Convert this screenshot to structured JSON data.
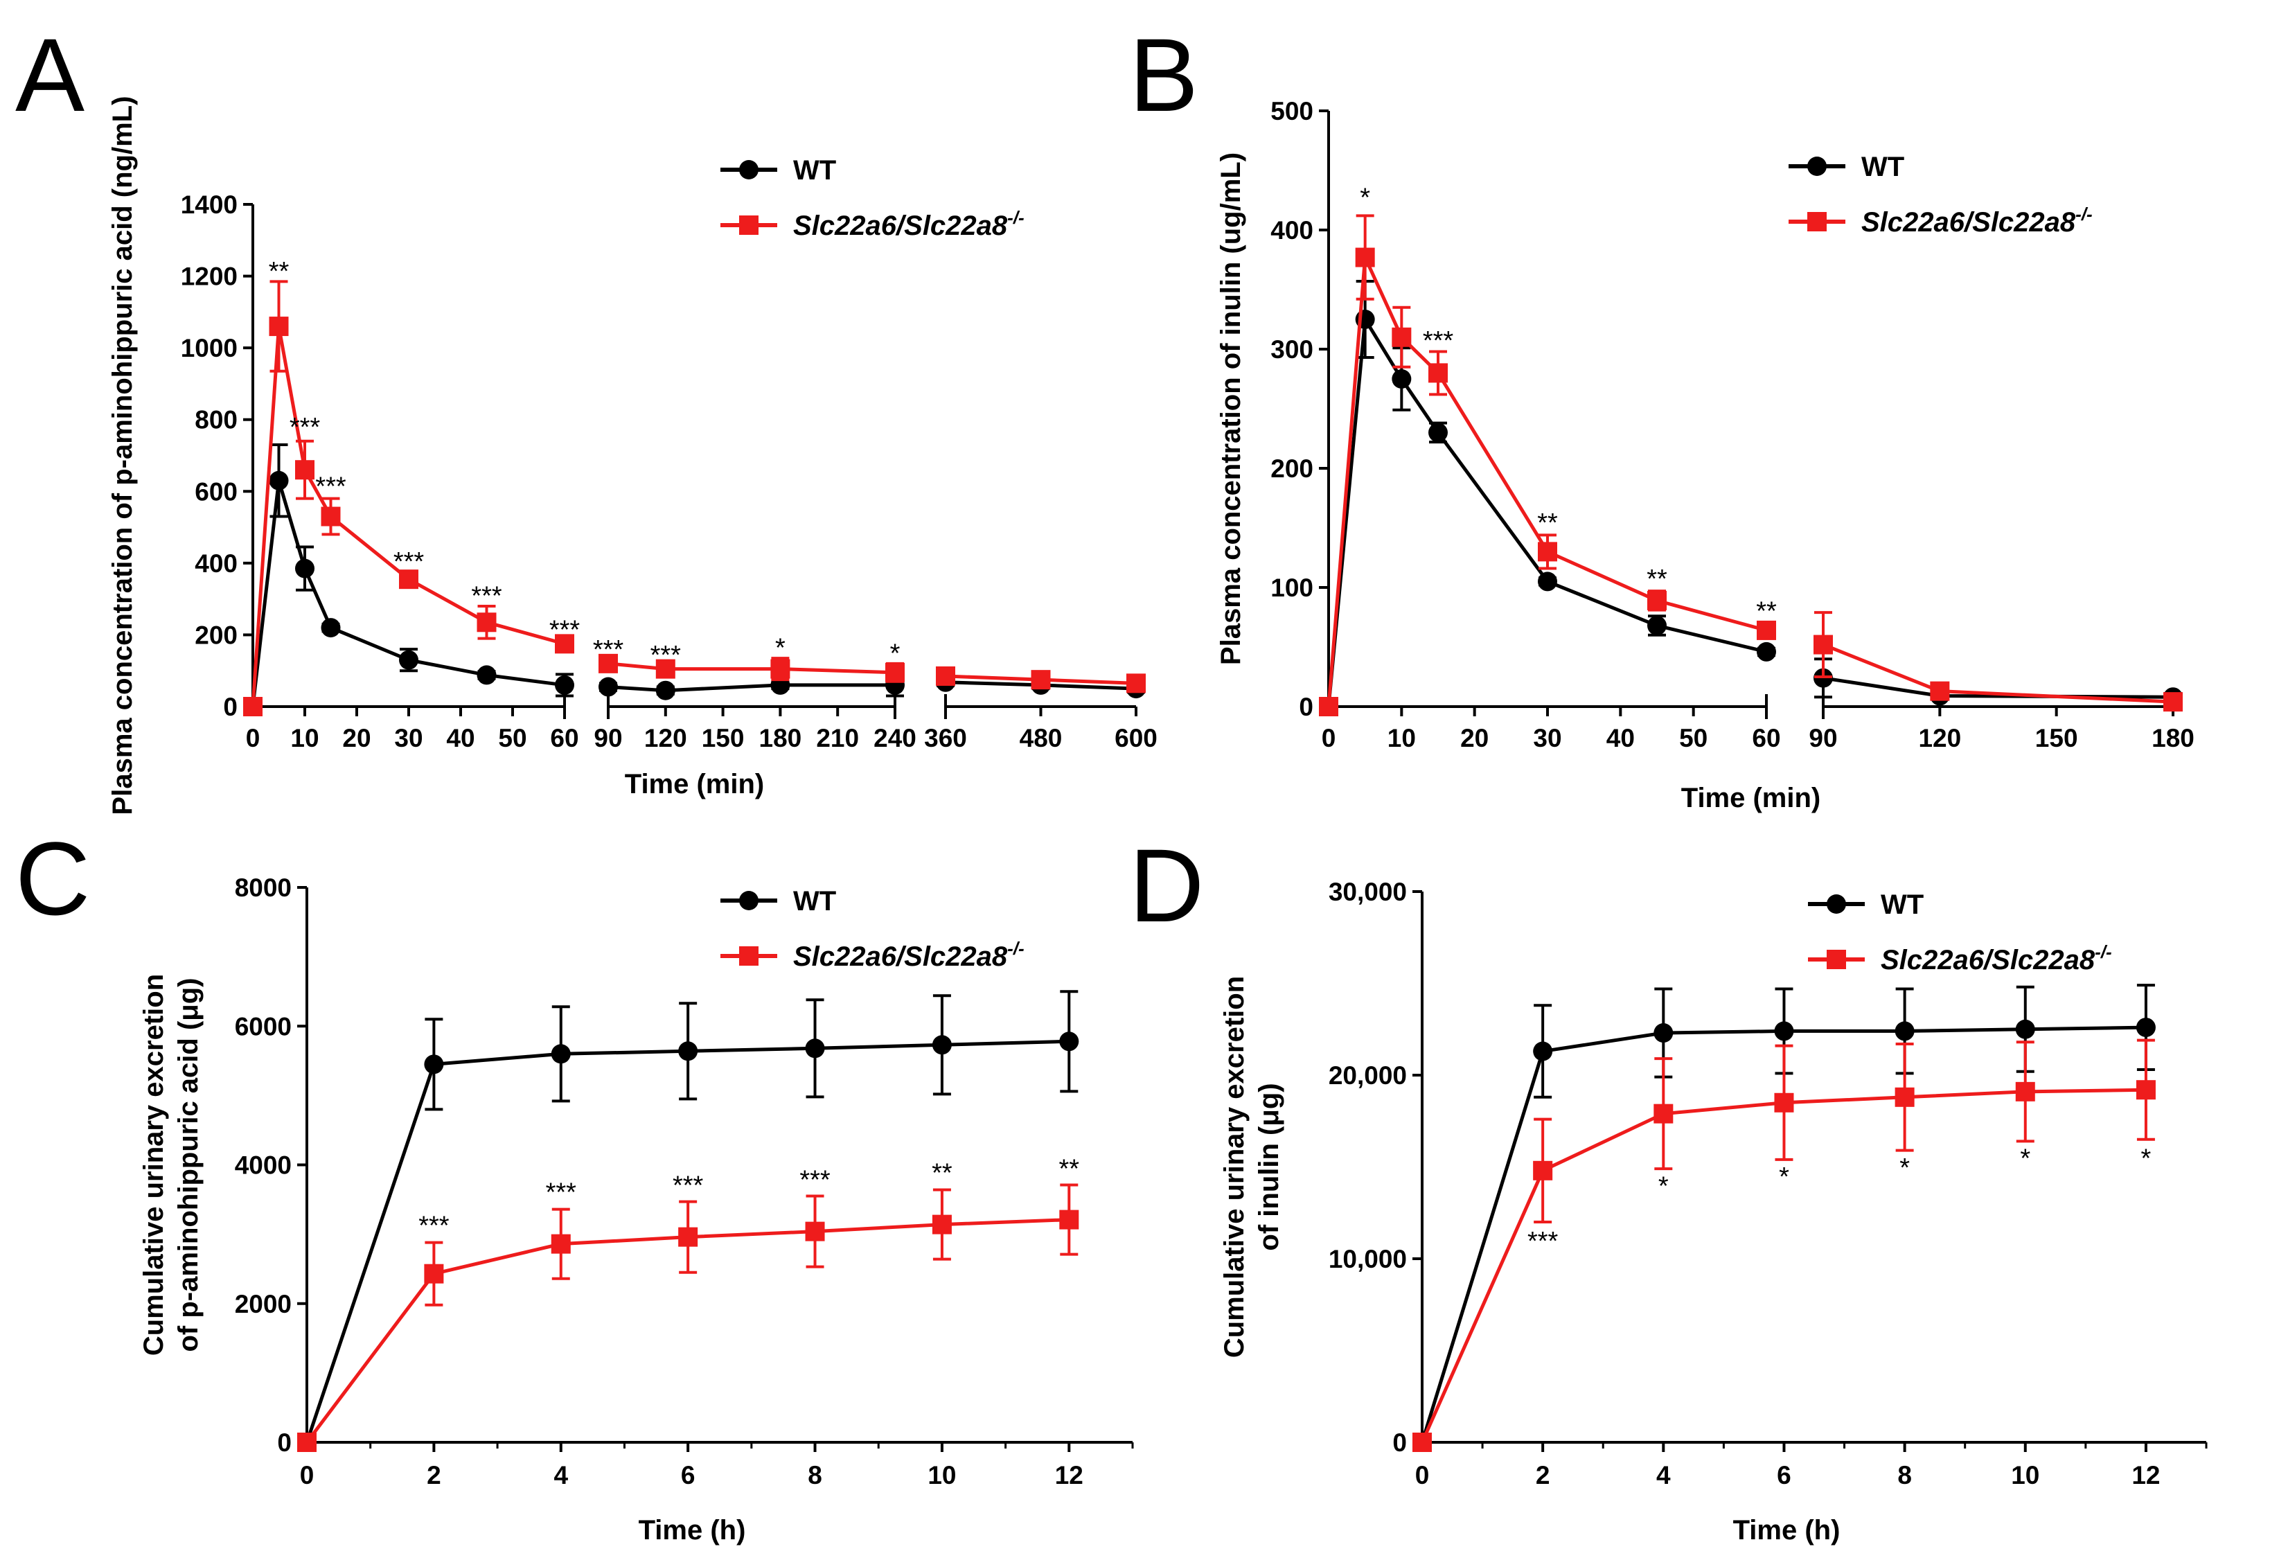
{
  "colors": {
    "wt": "#000000",
    "ko": "#ee1c1c"
  },
  "chart_data": [
    {
      "panel": "A",
      "type": "line",
      "xlabel": "Time (min)",
      "ylabel": "Plasma concentration of p-aminohippuric acid (ng/mL)",
      "ylim": [
        0,
        1400
      ],
      "yticks": [
        "0",
        "200",
        "400",
        "600",
        "800",
        "1000",
        "1200",
        "1400"
      ],
      "x_segments": [
        {
          "range": [
            0,
            60
          ],
          "ticks": [
            "0",
            "10",
            "20",
            "30",
            "40",
            "50",
            "60"
          ]
        },
        {
          "range": [
            90,
            240
          ],
          "ticks": [
            "90",
            "120",
            "150",
            "180",
            "210",
            "240"
          ]
        },
        {
          "range": [
            360,
            600
          ],
          "ticks": [
            "360",
            "480",
            "600"
          ]
        }
      ],
      "legend": [
        "WT",
        "Slc22a6/Slc22a8",
        "-/-"
      ],
      "series": [
        {
          "name": "WT",
          "marker": "circle",
          "x": [
            0,
            5,
            10,
            15,
            30,
            45,
            60,
            90,
            120,
            180,
            240,
            360,
            480,
            600
          ],
          "y": [
            0,
            630,
            385,
            220,
            130,
            88,
            60,
            55,
            45,
            60,
            60,
            68,
            60,
            50
          ],
          "err": [
            0,
            100,
            60,
            10,
            30,
            10,
            30,
            10,
            10,
            10,
            30,
            10,
            10,
            10
          ]
        },
        {
          "name": "Slc22a6/Slc22a8-/-",
          "marker": "square",
          "x": [
            0,
            5,
            10,
            15,
            30,
            45,
            60,
            90,
            120,
            180,
            240,
            360,
            480,
            600
          ],
          "y": [
            0,
            1060,
            660,
            530,
            355,
            235,
            175,
            120,
            105,
            105,
            95,
            85,
            75,
            65
          ],
          "err": [
            0,
            125,
            80,
            50,
            20,
            45,
            10,
            10,
            10,
            30,
            25,
            10,
            10,
            10
          ]
        }
      ],
      "annotations": [
        {
          "x": 5,
          "y": 1190,
          "text": "**"
        },
        {
          "x": 10,
          "y": 755,
          "text": "***"
        },
        {
          "x": 15,
          "y": 590,
          "text": "***"
        },
        {
          "x": 30,
          "y": 380,
          "text": "***"
        },
        {
          "x": 45,
          "y": 285,
          "text": "***"
        },
        {
          "x": 60,
          "y": 190,
          "text": "***"
        },
        {
          "x": 90,
          "y": 135,
          "text": "***"
        },
        {
          "x": 120,
          "y": 120,
          "text": "***"
        },
        {
          "x": 180,
          "y": 140,
          "text": "*"
        },
        {
          "x": 240,
          "y": 125,
          "text": "*"
        }
      ]
    },
    {
      "panel": "B",
      "type": "line",
      "xlabel": "Time (min)",
      "ylabel": "Plasma concentration of inulin (ug/mL)",
      "ylim": [
        0,
        500
      ],
      "yticks": [
        "0",
        "100",
        "200",
        "300",
        "400",
        "500"
      ],
      "x_segments": [
        {
          "range": [
            0,
            60
          ],
          "ticks": [
            "0",
            "10",
            "20",
            "30",
            "40",
            "50",
            "60"
          ]
        },
        {
          "range": [
            90,
            180
          ],
          "ticks": [
            "90",
            "120",
            "150",
            "180"
          ]
        }
      ],
      "legend": [
        "WT",
        "Slc22a6/Slc22a8",
        "-/-"
      ],
      "series": [
        {
          "name": "WT",
          "marker": "circle",
          "x": [
            0,
            5,
            10,
            15,
            30,
            45,
            60,
            90,
            120,
            180
          ],
          "y": [
            0,
            325,
            275,
            230,
            105,
            68,
            46,
            24,
            9,
            8
          ],
          "err": [
            0,
            32,
            26,
            8,
            3,
            8,
            3,
            16,
            3,
            3
          ]
        },
        {
          "name": "Slc22a6/Slc22a8-/-",
          "marker": "square",
          "x": [
            0,
            5,
            10,
            15,
            30,
            45,
            60,
            90,
            120,
            180
          ],
          "y": [
            0,
            377,
            310,
            280,
            130,
            89,
            64,
            52,
            13,
            4
          ],
          "err": [
            0,
            35,
            25,
            18,
            14,
            8,
            5,
            27,
            4,
            3
          ]
        }
      ],
      "annotations": [
        {
          "x": 5,
          "y": 420,
          "text": "*"
        },
        {
          "x": 15,
          "y": 300,
          "text": "***"
        },
        {
          "x": 30,
          "y": 147,
          "text": "**"
        },
        {
          "x": 45,
          "y": 100,
          "text": "**"
        },
        {
          "x": 60,
          "y": 73,
          "text": "**"
        }
      ]
    },
    {
      "panel": "C",
      "type": "line",
      "xlabel": "Time (h)",
      "ylabel_lines": [
        "Cumulative urinary excretion",
        "of p-aminohippuric acid (μg)"
      ],
      "ylim": [
        0,
        8000
      ],
      "yticks": [
        "0",
        "2000",
        "4000",
        "6000",
        "8000"
      ],
      "xlim": [
        0,
        13
      ],
      "xticks": [
        "0",
        "2",
        "4",
        "6",
        "8",
        "10",
        "12"
      ],
      "legend": [
        "WT",
        "Slc22a6/Slc22a8",
        "-/-"
      ],
      "series": [
        {
          "name": "WT",
          "marker": "circle",
          "x": [
            0,
            2,
            4,
            6,
            8,
            10,
            12
          ],
          "y": [
            0,
            5450,
            5600,
            5640,
            5680,
            5730,
            5780
          ],
          "err": [
            0,
            650,
            680,
            690,
            700,
            710,
            720
          ]
        },
        {
          "name": "Slc22a6/Slc22a8-/-",
          "marker": "square",
          "x": [
            0,
            2,
            4,
            6,
            8,
            10,
            12
          ],
          "y": [
            0,
            2430,
            2860,
            2960,
            3040,
            3140,
            3210
          ],
          "err": [
            0,
            450,
            500,
            510,
            510,
            500,
            500
          ]
        }
      ],
      "annotations": [
        {
          "x": 2,
          "y": 3000,
          "text": "***"
        },
        {
          "x": 4,
          "y": 3480,
          "text": "***"
        },
        {
          "x": 6,
          "y": 3580,
          "text": "***"
        },
        {
          "x": 8,
          "y": 3660,
          "text": "***"
        },
        {
          "x": 10,
          "y": 3760,
          "text": "**"
        },
        {
          "x": 12,
          "y": 3820,
          "text": "**"
        }
      ]
    },
    {
      "panel": "D",
      "type": "line",
      "xlabel": "Time (h)",
      "ylabel_lines": [
        "Cumulative urinary excretion",
        "of inulin (μg)"
      ],
      "ylim": [
        0,
        30000
      ],
      "yticks": [
        "0",
        "10,000",
        "20,000",
        "30,000"
      ],
      "xlim": [
        0,
        13
      ],
      "xticks": [
        "0",
        "2",
        "4",
        "6",
        "8",
        "10",
        "12"
      ],
      "legend": [
        "WT",
        "Slc22a6/Slc22a8",
        "-/-"
      ],
      "series": [
        {
          "name": "WT",
          "marker": "circle",
          "x": [
            0,
            2,
            4,
            6,
            8,
            10,
            12
          ],
          "y": [
            0,
            21300,
            22300,
            22400,
            22400,
            22500,
            22600
          ],
          "err": [
            0,
            2500,
            2400,
            2300,
            2300,
            2300,
            2300
          ]
        },
        {
          "name": "Slc22a6/Slc22a8-/-",
          "marker": "square",
          "x": [
            0,
            2,
            4,
            6,
            8,
            10,
            12
          ],
          "y": [
            0,
            14800,
            17900,
            18500,
            18800,
            19100,
            19200
          ],
          "err": [
            0,
            2800,
            3000,
            3100,
            2900,
            2700,
            2700
          ]
        }
      ],
      "annotations": [
        {
          "x": 2,
          "y": 10500,
          "text": "***"
        },
        {
          "x": 4,
          "y": 13500,
          "text": "*"
        },
        {
          "x": 6,
          "y": 14000,
          "text": "*"
        },
        {
          "x": 8,
          "y": 14500,
          "text": "*"
        },
        {
          "x": 10,
          "y": 15000,
          "text": "*"
        },
        {
          "x": 12,
          "y": 15000,
          "text": "*"
        }
      ]
    }
  ]
}
